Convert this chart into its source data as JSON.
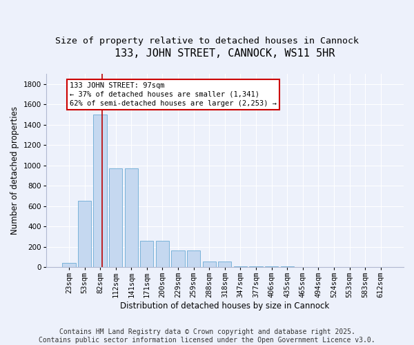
{
  "title": "133, JOHN STREET, CANNOCK, WS11 5HR",
  "subtitle": "Size of property relative to detached houses in Cannock",
  "xlabel": "Distribution of detached houses by size in Cannock",
  "ylabel": "Number of detached properties",
  "footer_line1": "Contains HM Land Registry data © Crown copyright and database right 2025.",
  "footer_line2": "Contains public sector information licensed under the Open Government Licence v3.0.",
  "categories": [
    "23sqm",
    "53sqm",
    "82sqm",
    "112sqm",
    "141sqm",
    "171sqm",
    "200sqm",
    "229sqm",
    "259sqm",
    "288sqm",
    "318sqm",
    "347sqm",
    "377sqm",
    "406sqm",
    "435sqm",
    "465sqm",
    "494sqm",
    "524sqm",
    "553sqm",
    "583sqm",
    "612sqm"
  ],
  "values": [
    40,
    650,
    1500,
    970,
    970,
    260,
    260,
    160,
    160,
    55,
    55,
    10,
    10,
    5,
    5,
    2,
    2,
    0,
    0,
    0,
    0
  ],
  "bar_color": "#c5d8f0",
  "bar_edge_color": "#6aaad4",
  "background_color": "#edf1fb",
  "grid_color": "#ffffff",
  "annotation_text_line1": "133 JOHN STREET: 97sqm",
  "annotation_text_line2": "← 37% of detached houses are smaller (1,341)",
  "annotation_text_line3": "62% of semi-detached houses are larger (2,253) →",
  "annotation_box_color": "#cc0000",
  "vline_color": "#bb0000",
  "vline_x": 2.15,
  "ylim": [
    0,
    1900
  ],
  "yticks": [
    0,
    200,
    400,
    600,
    800,
    1000,
    1200,
    1400,
    1600,
    1800
  ],
  "title_fontsize": 11,
  "subtitle_fontsize": 9.5,
  "label_fontsize": 8.5,
  "tick_fontsize": 7.5,
  "footer_fontsize": 7,
  "annot_fontsize": 7.5
}
